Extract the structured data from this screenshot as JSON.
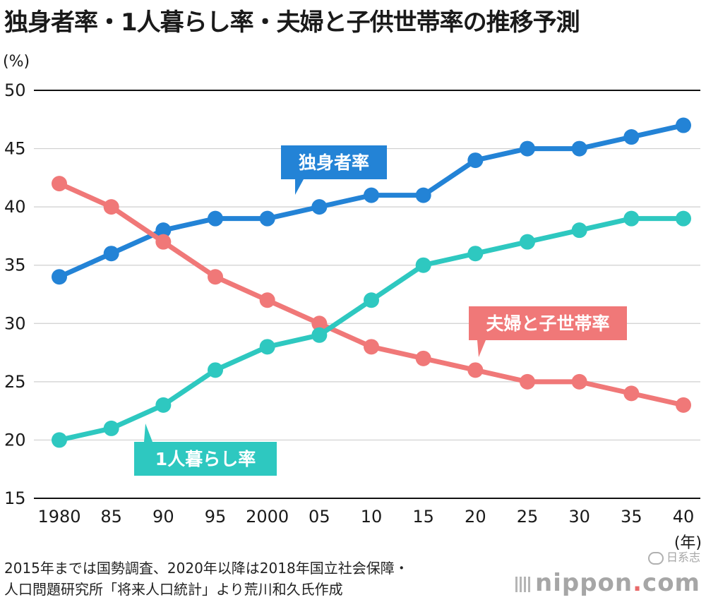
{
  "chart_data": {
    "type": "line",
    "title": "独身者率・1人暮らし率・夫婦と子供世帯率の推移予測",
    "ylabel": "(%)",
    "xlabel": "(年)",
    "ylim": [
      15,
      50
    ],
    "yticks": [
      "15",
      "20",
      "25",
      "30",
      "35",
      "40",
      "45",
      "50"
    ],
    "categories": [
      "1980",
      "85",
      "90",
      "95",
      "2000",
      "05",
      "10",
      "15",
      "20",
      "25",
      "30",
      "35",
      "40"
    ],
    "grid": true,
    "series": [
      {
        "name": "独身者率",
        "color": "#2383d6",
        "values": [
          34,
          36,
          38,
          39,
          39,
          40,
          41,
          41,
          44,
          45,
          45,
          46,
          47
        ]
      },
      {
        "name": "夫婦と子世帯率",
        "color": "#f07878",
        "values": [
          42,
          40,
          37,
          34,
          32,
          30,
          28,
          27,
          26,
          25,
          25,
          24,
          23
        ]
      },
      {
        "name": "1人暮らし率",
        "color": "#2ec8c0",
        "values": [
          20,
          21,
          23,
          26,
          28,
          29,
          32,
          35,
          36,
          37,
          38,
          39,
          39
        ]
      }
    ]
  },
  "source_note": {
    "line1": "2015年までは国勢調査、2020年以降は2018年国立社会保障・",
    "line2": "人口問題研究所「将来人口統計」より荒川和久氏作成"
  },
  "watermark": {
    "wechat": "日系志",
    "brand_main": "nippon",
    "brand_dot": ".",
    "brand_tail": "com"
  }
}
